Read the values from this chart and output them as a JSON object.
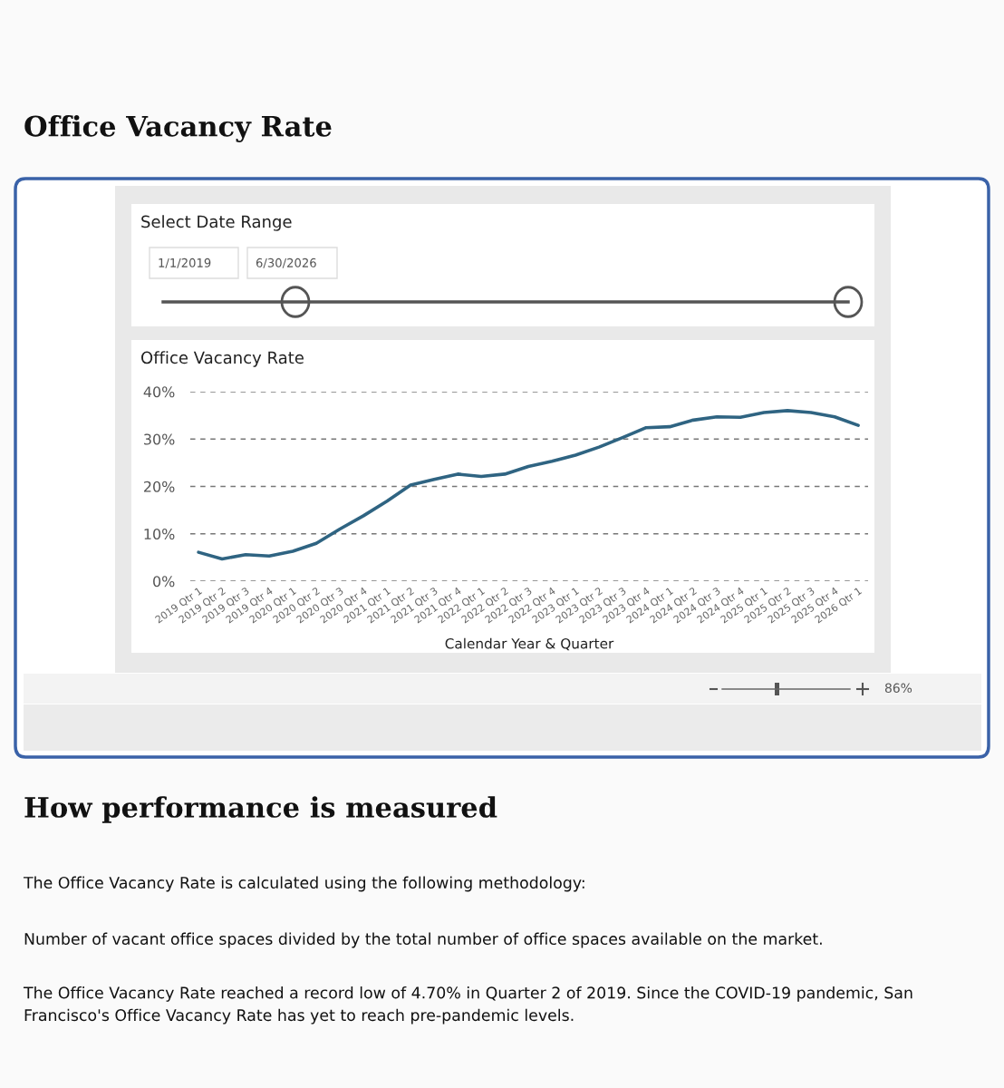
{
  "chart_data": {
    "type": "line",
    "title": "Office Vacancy Rate",
    "xlabel": "Calendar Year & Quarter",
    "categories": [
      "2019 Qtr 1",
      "2019 Qtr 2",
      "2019 Qtr 3",
      "2019 Qtr 4",
      "2020 Qtr 1",
      "2020 Qtr 2",
      "2020 Qtr 3",
      "2020 Qtr 4",
      "2021 Qtr 1",
      "2021 Qtr 2",
      "2021 Qtr 3",
      "2021 Qtr 4",
      "2022 Qtr 1",
      "2022 Qtr 2",
      "2022 Qtr 3",
      "2022 Qtr 4",
      "2023 Qtr 1",
      "2023 Qtr 2",
      "2023 Qtr 3",
      "2023 Qtr 4",
      "2024 Qtr 1",
      "2024 Qtr 2",
      "2024 Qtr 3",
      "2024 Qtr 4",
      "2025 Qtr 1",
      "2025 Qtr 2",
      "2025 Qtr 3",
      "2025 Qtr 4",
      "2026 Qtr 1"
    ],
    "series": [
      {
        "color": "#2f6482",
        "values": [
          6.1,
          4.7,
          5.6,
          5.3,
          6.3,
          8.0,
          11.0,
          13.8,
          16.9,
          20.3,
          21.5,
          22.6,
          22.1,
          22.6,
          24.2,
          25.3,
          26.6,
          28.3,
          30.3,
          32.4,
          32.6,
          34.0,
          34.7,
          34.6,
          35.6,
          36.0,
          35.6,
          34.7,
          32.9
        ]
      }
    ],
    "ylim": [
      0,
      40
    ],
    "yticks": [
      {
        "value": 0,
        "label": "0%"
      },
      {
        "value": 10,
        "label": "10%"
      },
      {
        "value": 20,
        "label": "20%"
      },
      {
        "value": 30,
        "label": "30%"
      },
      {
        "value": 40,
        "label": "40%"
      }
    ],
    "grid": "y",
    "marker": "none",
    "line_style": "solid",
    "annotations": [
      "Office Vacancy Rate",
      "Select Date Range",
      "1/1/2019",
      "6/30/2026",
      "86%",
      "How performance is measured",
      "The Office Vacancy Rate is calculated using the following methodology:",
      "Number of vacant office spaces divided by the total number of office spaces available on the market.",
      "The Office Vacancy Rate reached a record low of 4.70% in Quarter 2 of 2019. Since the COVID-19 pandemic, San Francisco's Office Vacancy Rate has yet to reach pre-pandemic levels."
    ]
  }
}
